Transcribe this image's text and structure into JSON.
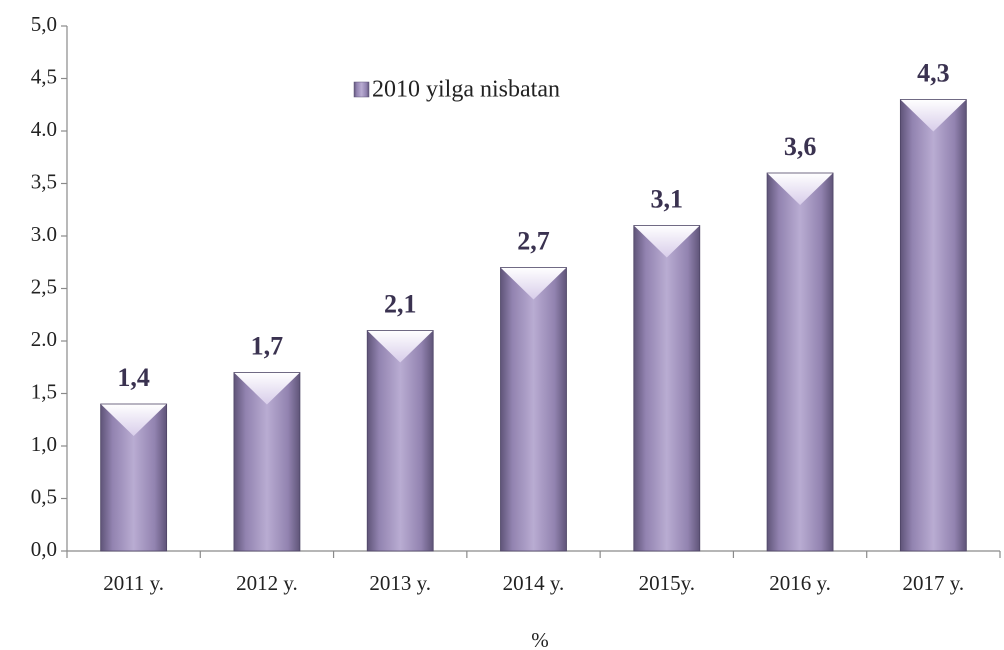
{
  "chart_data": {
    "type": "bar",
    "x_label": "%",
    "categories": [
      "2011 y.",
      "2012 y.",
      "2013 y.",
      "2014 y.",
      "2015y.",
      "2016 y.",
      "2017 y."
    ],
    "series": [
      {
        "name": "2010 yilga nisbatan",
        "color": "#9d8fbb",
        "values": [
          1.4,
          1.7,
          2.1,
          2.7,
          3.1,
          3.6,
          4.3
        ],
        "value_labels": [
          "1,4",
          "1,7",
          "2,1",
          "2,7",
          "3,1",
          "3,6",
          "4,3"
        ]
      }
    ],
    "ylim": [
      0,
      5
    ],
    "yticks": [
      {
        "value": 0,
        "label": "0,0"
      },
      {
        "value": 0.5,
        "label": "0,5"
      },
      {
        "value": 1,
        "label": "1,0"
      },
      {
        "value": 1.5,
        "label": "1,5"
      },
      {
        "value": 2,
        "label": "2.0"
      },
      {
        "value": 2.5,
        "label": "2,5"
      },
      {
        "value": 3,
        "label": "3.0"
      },
      {
        "value": 3.5,
        "label": "3,5"
      },
      {
        "value": 4,
        "label": "4.0"
      },
      {
        "value": 4.5,
        "label": "4,5"
      },
      {
        "value": 5,
        "label": "5,0"
      }
    ],
    "grid": false
  }
}
